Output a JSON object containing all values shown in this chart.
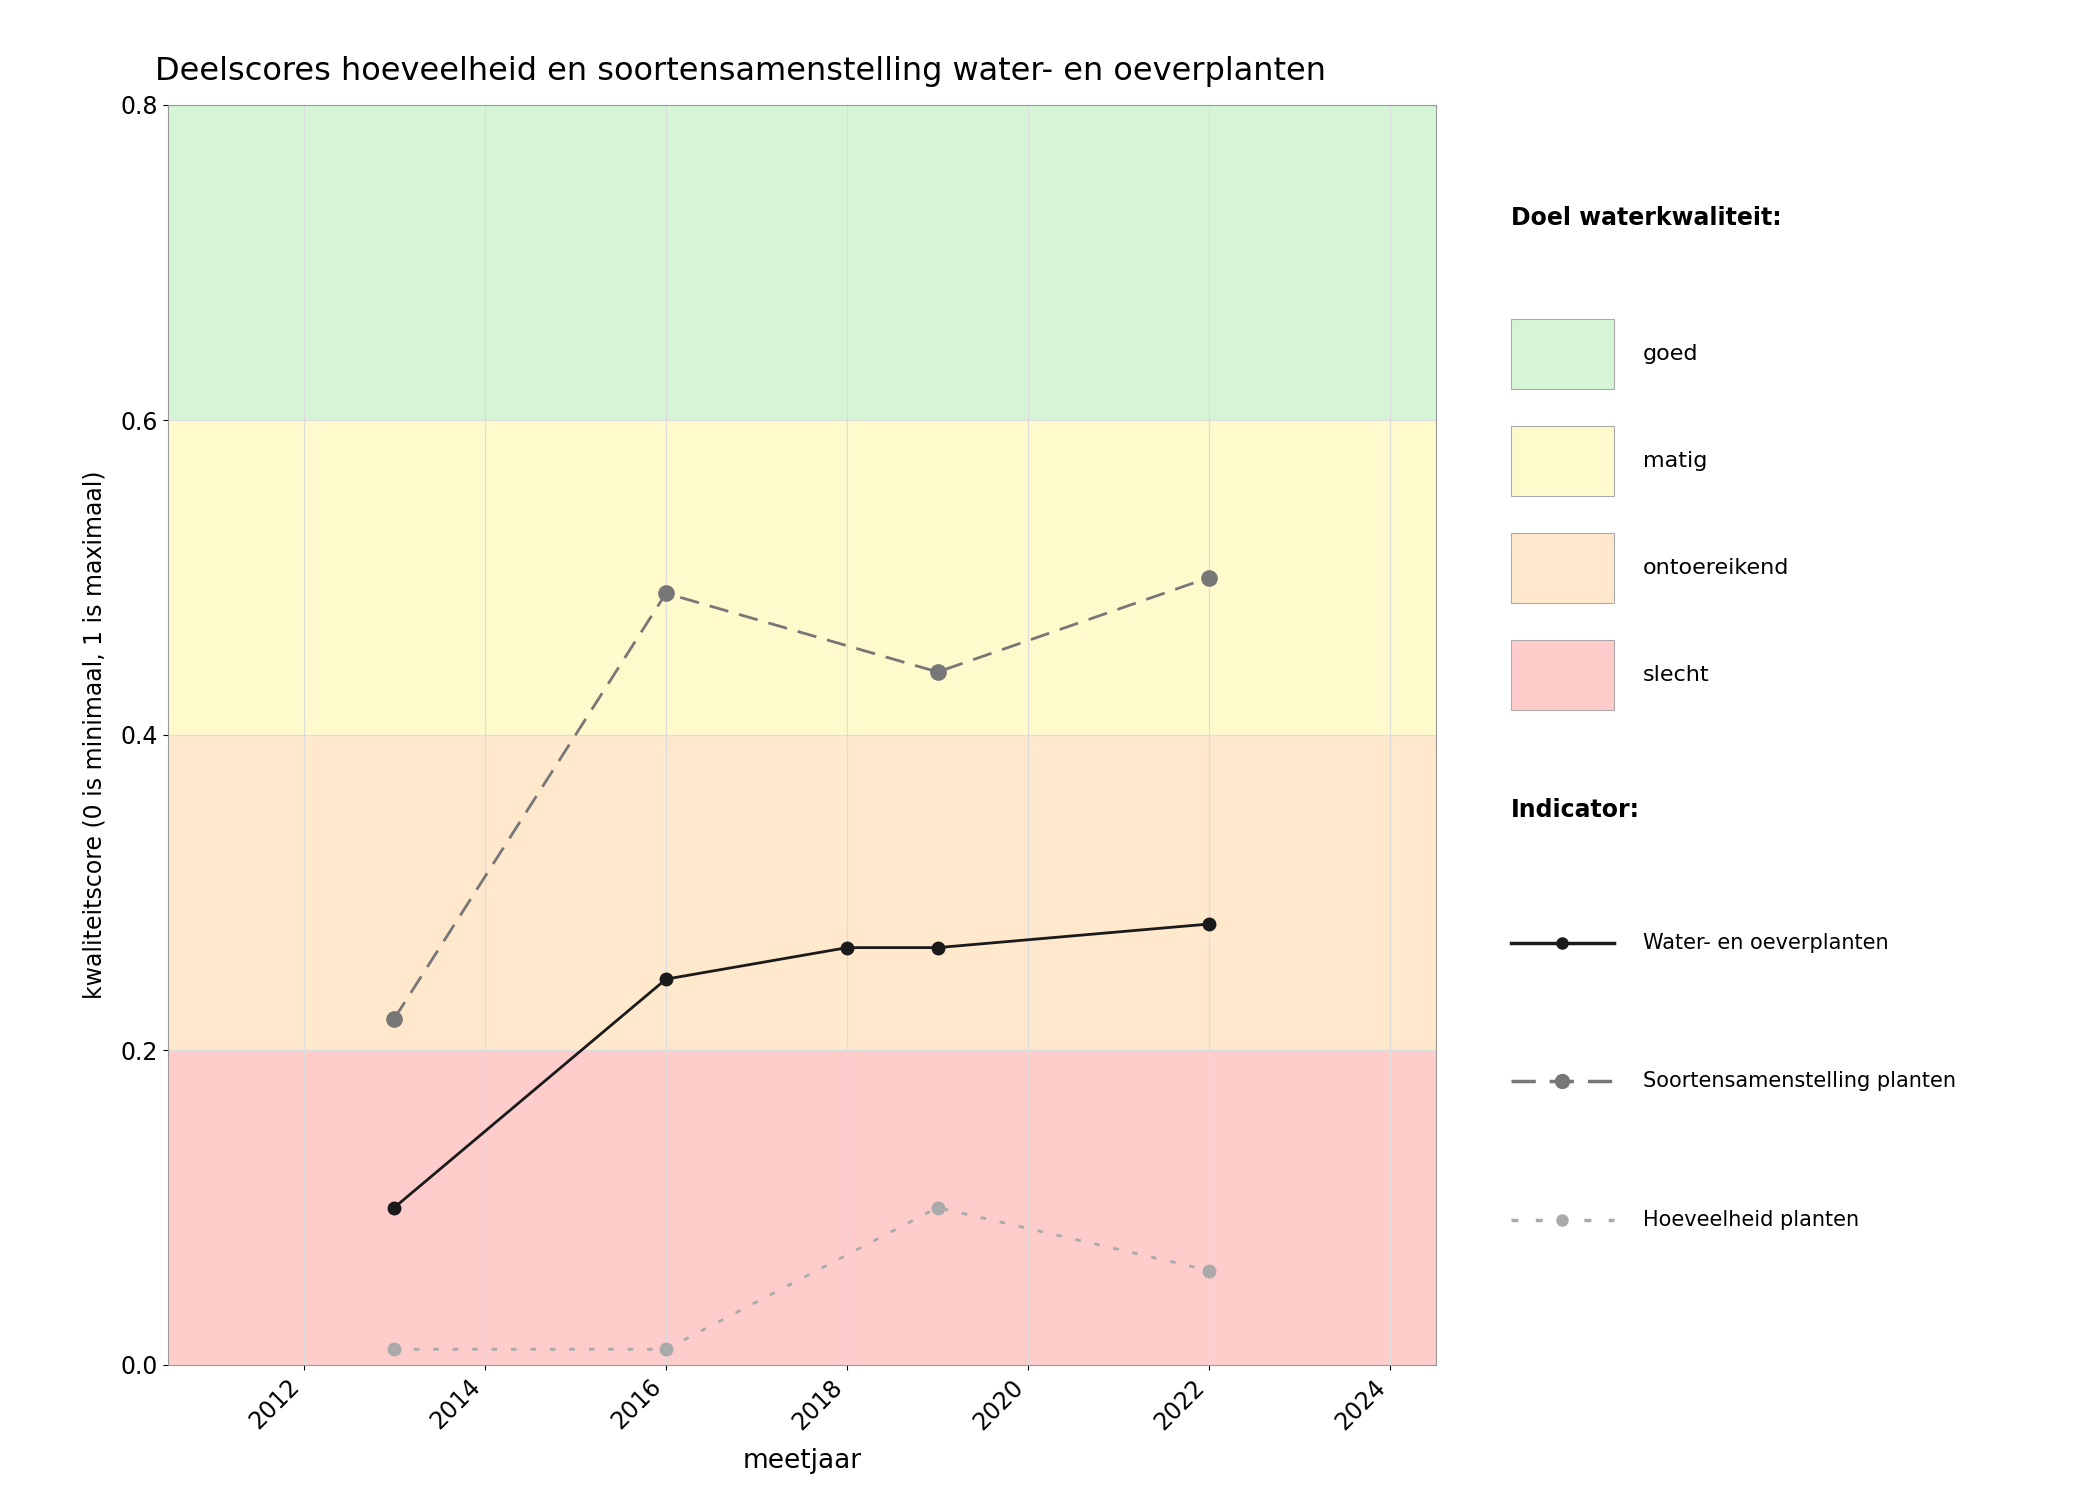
{
  "title": "Deelscores hoeveelheid en soortensamenstelling water- en oeverplanten",
  "xlabel": "meetjaar",
  "ylabel": "kwaliteitscore (0 is minimaal, 1 is maximaal)",
  "xlim": [
    2010.5,
    2024.5
  ],
  "ylim": [
    0.0,
    0.8
  ],
  "xticks": [
    2012,
    2014,
    2016,
    2018,
    2020,
    2022,
    2024
  ],
  "yticks": [
    0.0,
    0.2,
    0.4,
    0.6,
    0.8
  ],
  "bg_bands": [
    {
      "ymin": 0.0,
      "ymax": 0.2,
      "color": "#ffcccc",
      "label": "slecht"
    },
    {
      "ymin": 0.2,
      "ymax": 0.4,
      "color": "#ffe8cc",
      "label": "ontoereikend"
    },
    {
      "ymin": 0.4,
      "ymax": 0.6,
      "color": "#fffacc",
      "label": "matig"
    },
    {
      "ymin": 0.6,
      "ymax": 0.8,
      "color": "#d6f5d6",
      "label": "goed"
    }
  ],
  "line_water": {
    "x": [
      2013,
      2016,
      2018,
      2019,
      2022
    ],
    "y": [
      0.1,
      0.245,
      0.265,
      0.265,
      0.28
    ],
    "color": "#1a1a1a",
    "markersize": 9,
    "label": "Water- en oeverplanten"
  },
  "line_soorten": {
    "x": [
      2013,
      2016,
      2019,
      2022
    ],
    "y": [
      0.22,
      0.49,
      0.44,
      0.5
    ],
    "color": "#777777",
    "markersize": 11,
    "label": "Soortensamenstelling planten"
  },
  "line_hoeveelheid": {
    "x": [
      2013,
      2016,
      2019,
      2022
    ],
    "y": [
      0.01,
      0.01,
      0.1,
      0.06
    ],
    "color": "#aaaaaa",
    "markersize": 9,
    "label": "Hoeveelheid planten"
  },
  "legend_doel_title": "Doel waterkwaliteit:",
  "legend_indicator_title": "Indicator:",
  "background_color": "#ffffff",
  "grid_color": "#dddddd"
}
